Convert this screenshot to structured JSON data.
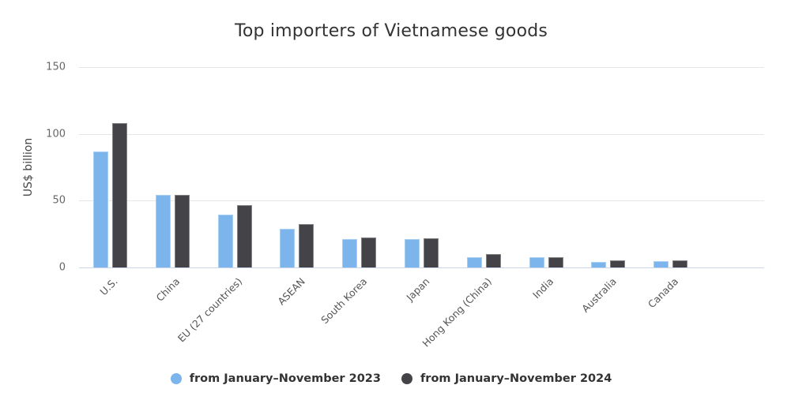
{
  "chart_data": {
    "type": "bar",
    "title": "Top importers of Vietnamese goods",
    "xlabel": "",
    "ylabel": "US$ billion",
    "ylim": [
      0,
      150
    ],
    "yticks": [
      0,
      50,
      100,
      150
    ],
    "grid": true,
    "legend_position": "bottom",
    "categories": [
      "U.S.",
      "China",
      "EU (27 countries)",
      "ASEAN",
      "South Korea",
      "Japan",
      "Hong Kong (China)",
      "India",
      "Australia",
      "Canada"
    ],
    "series": [
      {
        "name": "from January–November 2023",
        "color": "#7cb5ec",
        "values": [
          86.8,
          54.2,
          39.3,
          29.0,
          21.1,
          21.1,
          7.9,
          7.9,
          4.0,
          4.7
        ]
      },
      {
        "name": "from January–November 2024",
        "color": "#434348",
        "values": [
          108.3,
          54.2,
          46.7,
          32.5,
          22.4,
          21.7,
          10.2,
          7.7,
          5.3,
          5.3
        ]
      }
    ]
  }
}
